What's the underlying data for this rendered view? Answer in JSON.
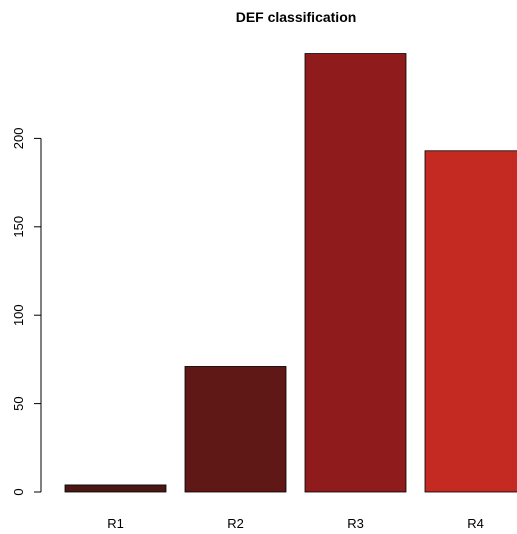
{
  "chart_data": {
    "type": "bar",
    "title": "DEF classification",
    "xlabel": "",
    "ylabel": "",
    "categories": [
      "R1",
      "R2",
      "R3",
      "R4"
    ],
    "values": [
      4,
      71,
      248,
      193
    ],
    "ylim": [
      0,
      250
    ],
    "yticks": [
      0,
      50,
      100,
      150,
      200
    ],
    "colors": [
      "#4a1713",
      "#601816",
      "#8f1b1c",
      "#c42922"
    ],
    "grid": false,
    "legend": "none"
  }
}
